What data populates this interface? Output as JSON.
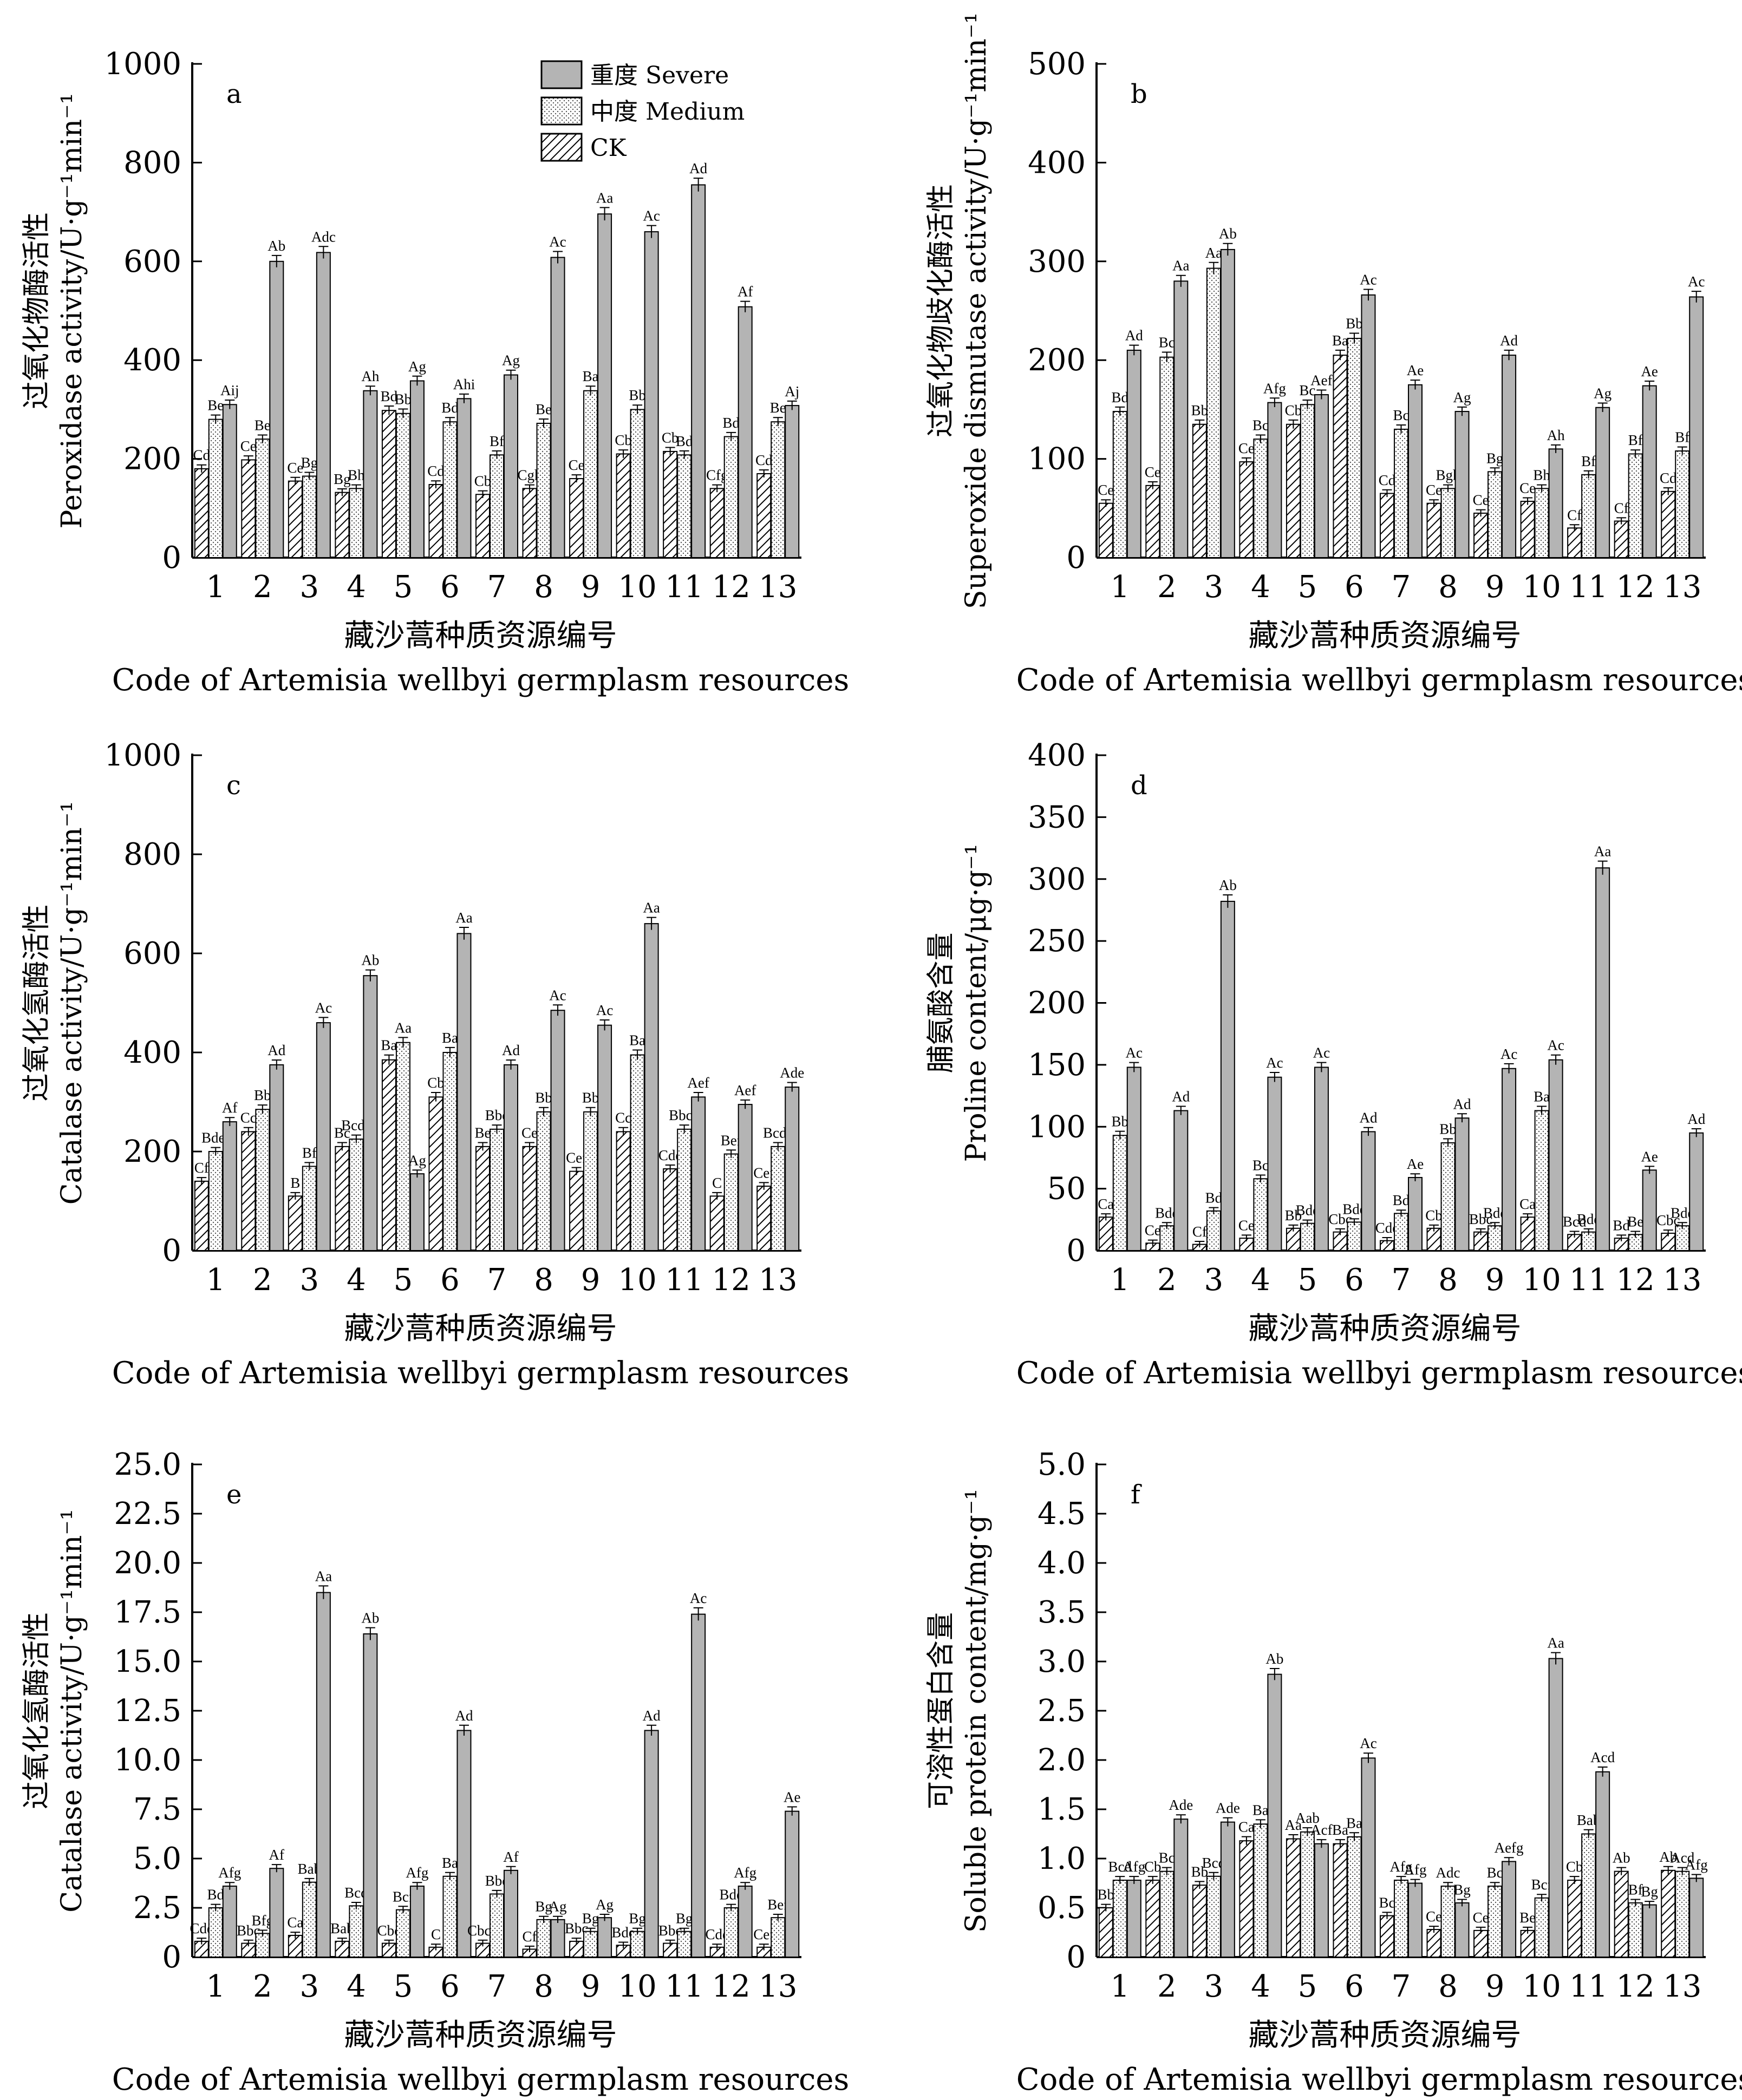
{
  "legend": {
    "severe": "重度 Severe",
    "medium": "中度 Medium",
    "ck": "CK"
  },
  "x_title_cn": "藏沙蒿种质资源编号",
  "x_title_en": "Code of Artemisia wellbyi germplasm resources",
  "colors": {
    "severe": "#b4b4b4",
    "frame": "#000000"
  },
  "chart_data": [
    {
      "type": "bar",
      "panel": "a",
      "ylabel_cn": "过氧化物酶活性",
      "ylabel_en": "Peroxidase activity/U·g⁻¹min⁻¹",
      "ylim": [
        0,
        1000
      ],
      "yticks": [
        0,
        200,
        400,
        600,
        800,
        1000
      ],
      "tick_labels": [
        "0",
        "200",
        "400",
        "600",
        "800",
        "1000"
      ],
      "categories": [
        "1",
        "2",
        "3",
        "4",
        "5",
        "6",
        "7",
        "8",
        "9",
        "10",
        "11",
        "12",
        "13"
      ],
      "series": [
        {
          "name": "CK",
          "values": [
            180,
            198,
            155,
            132,
            298,
            148,
            128,
            140,
            160,
            210,
            215,
            140,
            170
          ],
          "labels": [
            "Cd",
            "Ce",
            "Ce",
            "Bg",
            "Bd",
            "Cd",
            "Cb",
            "Cgh",
            "Ce",
            "Cb",
            "Cb",
            "Cfg",
            "Cd"
          ]
        },
        {
          "name": "Medium",
          "values": [
            280,
            240,
            165,
            140,
            292,
            275,
            208,
            272,
            338,
            300,
            208,
            245,
            275
          ],
          "labels": [
            "Be",
            "Be",
            "Bg",
            "Bh",
            "Bb",
            "Bd",
            "Bf",
            "Be",
            "Ba",
            "Bb",
            "Bd",
            "Bd",
            "Be"
          ]
        },
        {
          "name": "Severe",
          "values": [
            310,
            600,
            618,
            338,
            358,
            322,
            370,
            608,
            696,
            660,
            755,
            508,
            308
          ],
          "labels": [
            "Aij",
            "Ab",
            "Adc",
            "Ah",
            "Ag",
            "Ahi",
            "Ag",
            "Ac",
            "Aa",
            "Ac",
            "Ad",
            "Af",
            "Aj"
          ]
        }
      ]
    },
    {
      "type": "bar",
      "panel": "b",
      "ylabel_cn": "过氧化物歧化酶活性",
      "ylabel_en": "Superoxide dismutase activity/U·g⁻¹min⁻¹",
      "ylim": [
        0,
        500
      ],
      "yticks": [
        0,
        100,
        200,
        300,
        400,
        500
      ],
      "tick_labels": [
        "0",
        "100",
        "200",
        "300",
        "400",
        "500"
      ],
      "categories": [
        "1",
        "2",
        "3",
        "4",
        "5",
        "6",
        "7",
        "8",
        "9",
        "10",
        "11",
        "12",
        "13"
      ],
      "series": [
        {
          "name": "CK",
          "values": [
            55,
            73,
            135,
            97,
            135,
            205,
            65,
            55,
            45,
            57,
            30,
            37,
            67
          ],
          "labels": [
            "Ce",
            "Ce",
            "Bb",
            "Ce",
            "Cb",
            "Ba",
            "Cd",
            "Ce",
            "Ce",
            "Ce",
            "Cf",
            "Cf",
            "Cd"
          ]
        },
        {
          "name": "Medium",
          "values": [
            148,
            203,
            293,
            120,
            155,
            222,
            130,
            70,
            87,
            70,
            84,
            105,
            108
          ],
          "labels": [
            "Bd",
            "Bc",
            "Aa",
            "Bc",
            "Bc",
            "Bb",
            "Bc",
            "Bgh",
            "Bg",
            "Bh",
            "Bf",
            "Bf",
            "Bf"
          ]
        },
        {
          "name": "Severe",
          "values": [
            210,
            280,
            312,
            157,
            165,
            266,
            175,
            148,
            205,
            110,
            152,
            174,
            264
          ],
          "labels": [
            "Ad",
            "Aa",
            "Ab",
            "Afg",
            "Aef",
            "Ac",
            "Ae",
            "Ag",
            "Ad",
            "Ah",
            "Ag",
            "Ae",
            "Ac"
          ]
        }
      ]
    },
    {
      "type": "bar",
      "panel": "c",
      "ylabel_cn": "过氧化氢酶活性",
      "ylabel_en": "Catalase activity/U·g⁻¹min⁻¹",
      "ylim": [
        0,
        1000
      ],
      "yticks": [
        0,
        200,
        400,
        600,
        800,
        1000
      ],
      "tick_labels": [
        "0",
        "200",
        "400",
        "600",
        "800",
        "1000"
      ],
      "categories": [
        "1",
        "2",
        "3",
        "4",
        "5",
        "6",
        "7",
        "8",
        "9",
        "10",
        "11",
        "12",
        "13"
      ],
      "series": [
        {
          "name": "CK",
          "values": [
            140,
            240,
            110,
            210,
            385,
            310,
            210,
            210,
            160,
            240,
            165,
            110,
            130
          ],
          "labels": [
            "Cf",
            "Cc",
            "B",
            "Bc",
            "Ba",
            "Cb",
            "Be",
            "Ce",
            "Cef",
            "Cc",
            "Cde",
            "C",
            "Cef"
          ]
        },
        {
          "name": "Medium",
          "values": [
            200,
            285,
            170,
            225,
            420,
            400,
            245,
            280,
            280,
            395,
            245,
            195,
            210
          ],
          "labels": [
            "Bdef",
            "Bb",
            "Bf",
            "Bcde",
            "Aa",
            "Ba",
            "Bbc",
            "Bb",
            "Bb",
            "Ba",
            "Bbcd",
            "Bef",
            "Bcde"
          ]
        },
        {
          "name": "Severe",
          "values": [
            260,
            375,
            460,
            555,
            155,
            640,
            375,
            485,
            455,
            660,
            310,
            295,
            330
          ],
          "labels": [
            "Af",
            "Ad",
            "Ac",
            "Ab",
            "Ag",
            "Aa",
            "Ad",
            "Ac",
            "Ac",
            "Aa",
            "Aef",
            "Aef",
            "Ade"
          ]
        }
      ]
    },
    {
      "type": "bar",
      "panel": "d",
      "ylabel_cn": "脯氨酸含量",
      "ylabel_en": "Proline content/μg·g⁻¹",
      "ylim": [
        0,
        400
      ],
      "yticks": [
        0,
        50,
        100,
        150,
        200,
        250,
        300,
        350,
        400
      ],
      "tick_labels": [
        "0",
        "50",
        "100",
        "150",
        "200",
        "250",
        "300",
        "350",
        "400"
      ],
      "categories": [
        "1",
        "2",
        "3",
        "4",
        "5",
        "6",
        "7",
        "8",
        "9",
        "10",
        "11",
        "12",
        "13"
      ],
      "series": [
        {
          "name": "CK",
          "values": [
            27,
            6,
            5,
            10,
            18,
            15,
            8,
            18,
            15,
            27,
            13,
            10,
            14
          ],
          "labels": [
            "Ca",
            "Ce",
            "Cf",
            "Ce",
            "Bb",
            "Cbc",
            "Cde",
            "Cb",
            "Bbc",
            "Ca",
            "Bcd",
            "Bd",
            "Cbc"
          ]
        },
        {
          "name": "Medium",
          "values": [
            93,
            20,
            32,
            58,
            22,
            23,
            30,
            87,
            20,
            113,
            15,
            13,
            20
          ],
          "labels": [
            "Bb",
            "Bde",
            "Bd",
            "Bc",
            "Bde",
            "Bde",
            "Bd",
            "Bb",
            "Bde",
            "Ba",
            "Bde",
            "Be",
            "Bde"
          ]
        },
        {
          "name": "Severe",
          "values": [
            148,
            113,
            282,
            140,
            148,
            96,
            59,
            107,
            147,
            154,
            309,
            65,
            95
          ],
          "labels": [
            "Ac",
            "Ad",
            "Ab",
            "Ac",
            "Ac",
            "Ad",
            "Ae",
            "Ad",
            "Ac",
            "Ac",
            "Aa",
            "Ae",
            "Ad"
          ]
        }
      ]
    },
    {
      "type": "bar",
      "panel": "e",
      "ylabel_cn": "过氧化氢酶活性",
      "ylabel_en": "Catalase activity/U·g⁻¹min⁻¹",
      "ylim": [
        0,
        25
      ],
      "yticks": [
        0,
        2.5,
        5,
        7.5,
        10,
        12.5,
        15,
        17.5,
        20,
        22.5,
        25
      ],
      "tick_labels": [
        "0",
        "2.5",
        "5.0",
        "7.5",
        "10.0",
        "12.5",
        "15.0",
        "17.5",
        "20.0",
        "22.5",
        "25.0"
      ],
      "categories": [
        "1",
        "2",
        "3",
        "4",
        "5",
        "6",
        "7",
        "8",
        "9",
        "10",
        "11",
        "12",
        "13"
      ],
      "series": [
        {
          "name": "CK",
          "values": [
            0.8,
            0.7,
            1.1,
            0.8,
            0.7,
            0.5,
            0.7,
            0.4,
            0.8,
            0.6,
            0.7,
            0.5,
            0.5
          ],
          "labels": [
            "Cde",
            "Bbc",
            "Ca",
            "Bab",
            "Cbc",
            "C",
            "Cbcd",
            "Cf",
            "Bbc",
            "Bde",
            "Bbc",
            "Cde",
            "Cef"
          ]
        },
        {
          "name": "Medium",
          "values": [
            2.5,
            1.2,
            3.8,
            2.6,
            2.4,
            4.1,
            3.2,
            1.9,
            1.3,
            1.3,
            1.3,
            2.5,
            2.0
          ],
          "labels": [
            "Bd",
            "Bfg",
            "Bab",
            "Bcd",
            "Bcf",
            "Ba",
            "Bbc",
            "Bg",
            "Bg",
            "Bg",
            "Bg",
            "Bde",
            "Bef"
          ]
        },
        {
          "name": "Severe",
          "values": [
            3.6,
            4.5,
            18.5,
            16.4,
            3.6,
            11.5,
            4.4,
            1.9,
            2.0,
            11.5,
            17.4,
            3.6,
            7.4
          ],
          "labels": [
            "Afg",
            "Af",
            "Aa",
            "Ab",
            "Afg",
            "Ad",
            "Af",
            "Ag",
            "Ag",
            "Ad",
            "Ac",
            "Afg",
            "Ae"
          ]
        }
      ]
    },
    {
      "type": "bar",
      "panel": "f",
      "ylabel_cn": "可溶性蛋白含量",
      "ylabel_en": "Soluble protein content/mg·g⁻¹",
      "ylim": [
        0,
        5
      ],
      "yticks": [
        0,
        0.5,
        1,
        1.5,
        2,
        2.5,
        3,
        3.5,
        4,
        4.5,
        5
      ],
      "tick_labels": [
        "0",
        "0.5",
        "1.0",
        "1.5",
        "2.0",
        "2.5",
        "3.0",
        "3.5",
        "4.0",
        "4.5",
        "5.0"
      ],
      "categories": [
        "1",
        "2",
        "3",
        "4",
        "5",
        "6",
        "7",
        "8",
        "9",
        "10",
        "11",
        "12",
        "13"
      ],
      "series": [
        {
          "name": "CK",
          "values": [
            0.5,
            0.78,
            0.73,
            1.18,
            1.2,
            1.15,
            0.42,
            0.28,
            0.27,
            0.27,
            0.78,
            0.87,
            0.88
          ],
          "labels": [
            "Bb",
            "Cb",
            "Bb",
            "Ca",
            "Aa",
            "Ba",
            "Bc",
            "Ce",
            "Ce",
            "Be",
            "Cb",
            "Ab",
            "Ab"
          ]
        },
        {
          "name": "Medium",
          "values": [
            0.78,
            0.87,
            0.82,
            1.35,
            1.27,
            1.22,
            0.78,
            0.72,
            0.72,
            0.6,
            1.25,
            0.55,
            0.87
          ],
          "labels": [
            "Bcd",
            "Bc",
            "Bcd",
            "Ba",
            "Aab",
            "Ba",
            "Afg",
            "Adc",
            "Bc",
            "Bcf",
            "Bab",
            "Bf",
            "Acd"
          ]
        },
        {
          "name": "Severe",
          "values": [
            0.78,
            1.4,
            1.37,
            2.87,
            1.15,
            2.02,
            0.75,
            0.55,
            0.97,
            3.03,
            1.88,
            0.53,
            0.8
          ],
          "labels": [
            "Afg",
            "Ade",
            "Ade",
            "Ab",
            "Acf",
            "Ac",
            "Afg",
            "Bg",
            "Aefg",
            "Aa",
            "Acd",
            "Bg",
            "Afg"
          ]
        }
      ]
    }
  ]
}
